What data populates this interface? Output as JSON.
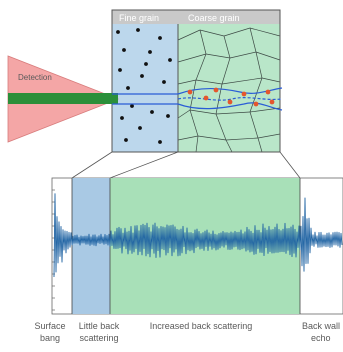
{
  "sample": {
    "header_fine": "Fine grain",
    "header_coarse": "Coarse grain"
  },
  "probe": {
    "label": "Detection"
  },
  "signal": {
    "regions": [
      {
        "label_line1": "Surface",
        "label_line2": "bang"
      },
      {
        "label_line1": "Little back",
        "label_line2": "scattering"
      },
      {
        "label_line1": "Increased back scattering",
        "label_line2": ""
      },
      {
        "label_line1": "Back wall",
        "label_line2": "echo"
      }
    ]
  },
  "colors": {
    "fine_fill": "#bcd7ec",
    "coarse_fill": "#b9e6c9",
    "header_fill": "#c9c9c9",
    "probe_fill": "#f4a6a6",
    "beam": "#2b8f3a",
    "ray": "#2a5cd6",
    "scatter": "#e4572e",
    "wave": "#1f63a3",
    "little_band": "#a9c9e4",
    "increased_band": "#a8e0b8"
  }
}
